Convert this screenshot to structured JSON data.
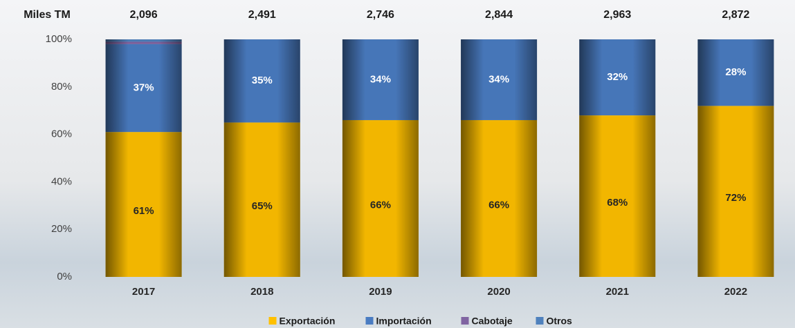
{
  "chart_data": {
    "type": "stacked_bar_100",
    "totals_label": "Miles TM",
    "categories": [
      "2017",
      "2018",
      "2019",
      "2020",
      "2021",
      "2022"
    ],
    "totals": {
      "values": [
        2096,
        2491,
        2746,
        2844,
        2963,
        2872
      ],
      "value_labels": [
        "2,096",
        "2,491",
        "2,746",
        "2,844",
        "2,963",
        "2,872"
      ]
    },
    "series": [
      {
        "name": "Exportación",
        "color": "#ffc000",
        "values": [
          61,
          65,
          66,
          66,
          68,
          72
        ],
        "value_labels": [
          "61%",
          "65%",
          "66%",
          "66%",
          "68%",
          "72%"
        ]
      },
      {
        "name": "Importación",
        "color": "#4a7cc2",
        "values": [
          37,
          35,
          34,
          34,
          32,
          28
        ],
        "value_labels": [
          "37%",
          "35%",
          "34%",
          "34%",
          "32%",
          "28%"
        ]
      },
      {
        "name": "Cabotaje",
        "color": "#8064a2",
        "values": [
          1,
          0,
          0,
          0,
          0,
          0
        ]
      },
      {
        "name": "Otros",
        "color": "#4f81bd",
        "values": [
          1,
          0,
          0,
          0,
          0,
          0
        ]
      }
    ],
    "ylim": [
      0,
      100
    ],
    "yticks": [
      {
        "value": 0,
        "label": "0%"
      },
      {
        "value": 20,
        "label": "20%"
      },
      {
        "value": 40,
        "label": "40%"
      },
      {
        "value": 60,
        "label": "60%"
      },
      {
        "value": 80,
        "label": "80%"
      },
      {
        "value": 100,
        "label": "100%"
      }
    ]
  }
}
